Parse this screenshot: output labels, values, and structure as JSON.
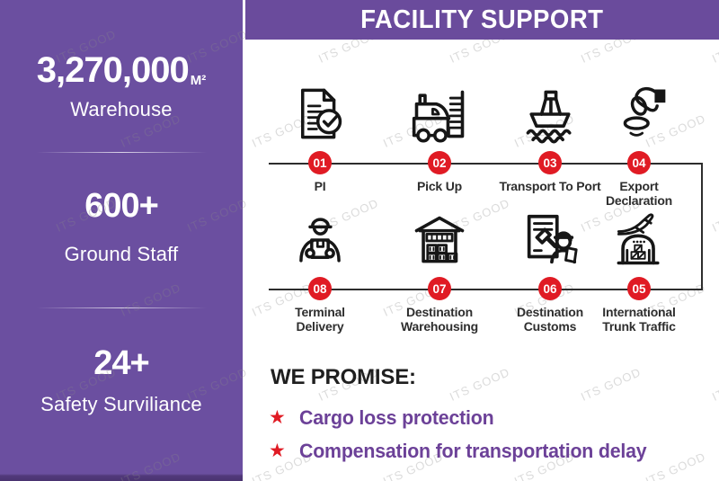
{
  "watermark": {
    "text": "ITS GOOD"
  },
  "sidebar": {
    "stats": [
      {
        "value": "3,270,000",
        "unit": "M²",
        "label": "Warehouse"
      },
      {
        "value": "600+",
        "unit": "",
        "label": "Ground Staff"
      },
      {
        "value": "24+",
        "unit": "",
        "label": "Safety Surviliance"
      }
    ]
  },
  "header": {
    "title": "FACILITY SUPPORT"
  },
  "process": {
    "steps": [
      {
        "num": "01",
        "label": "PI",
        "icon": "document-check-icon"
      },
      {
        "num": "02",
        "label": "Pick Up",
        "icon": "pickup-truck-icon"
      },
      {
        "num": "03",
        "label": "Transport To Port",
        "icon": "cargo-ship-icon"
      },
      {
        "num": "04",
        "label": "Export\nDeclaration",
        "icon": "stamp-icon"
      },
      {
        "num": "08",
        "label": "Terminal\nDelivery",
        "icon": "courier-icon"
      },
      {
        "num": "07",
        "label": "Destination\nWarehousing",
        "icon": "warehouse-icon"
      },
      {
        "num": "06",
        "label": "Destination\nCustoms",
        "icon": "customs-icon"
      },
      {
        "num": "05",
        "label": "International\nTrunk Traffic",
        "icon": "air-freight-icon"
      }
    ]
  },
  "promise": {
    "title": "WE PROMISE:",
    "items": [
      "Cargo loss protection",
      "Compensation for transportation delay"
    ]
  },
  "colors": {
    "sidebar_purple": "#6b4fa0",
    "banner_purple": "#6a4b9c",
    "badge_red": "#e01b24",
    "promise_purple": "#6c4198",
    "label_ink": "#2e2e2e"
  }
}
